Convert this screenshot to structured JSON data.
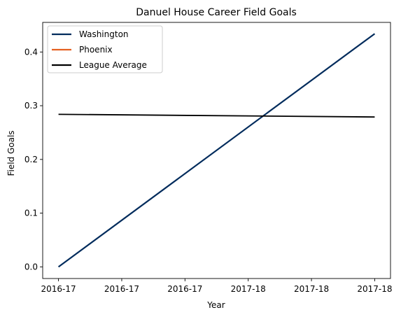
{
  "chart_data": {
    "type": "line",
    "title": "Danuel House Career Field Goals",
    "xlabel": "Year",
    "ylabel": "Field Goals",
    "categories": [
      "2016-17",
      "2016-17",
      "2016-17",
      "2017-18",
      "2017-18",
      "2017-18"
    ],
    "x_range": [
      -0.25,
      5.25
    ],
    "ylim": [
      -0.0217,
      0.4551
    ],
    "yticks": [
      0.0,
      0.1,
      0.2,
      0.3,
      0.4
    ],
    "ytick_labels": [
      "0.0",
      "0.1",
      "0.2",
      "0.3",
      "0.4"
    ],
    "grid": false,
    "legend_position": "top-left",
    "series": [
      {
        "name": "Washington",
        "color": "#002B5C",
        "x": [
          0,
          5
        ],
        "values": [
          0.0,
          0.434
        ]
      },
      {
        "name": "Phoenix",
        "color": "#E56020",
        "x": [],
        "values": []
      },
      {
        "name": "League Average",
        "color": "#000000",
        "x": [
          0,
          5
        ],
        "values": [
          0.284,
          0.279
        ]
      }
    ]
  }
}
